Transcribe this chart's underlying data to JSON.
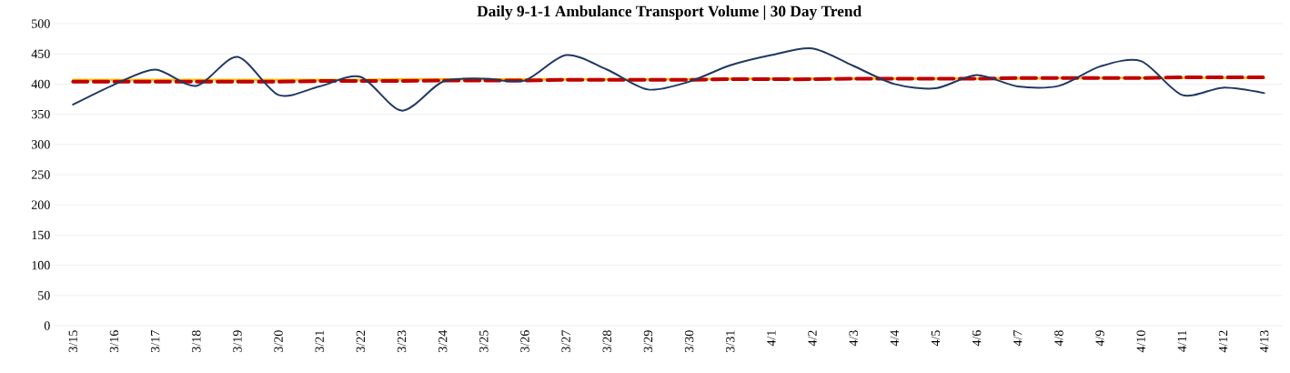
{
  "chart_data": {
    "type": "line",
    "title": "Daily 9-1-1 Ambulance Transport Volume | 30 Day Trend",
    "categories": [
      "3/15",
      "3/16",
      "3/17",
      "3/18",
      "3/19",
      "3/20",
      "3/21",
      "3/22",
      "3/23",
      "3/24",
      "3/25",
      "3/26",
      "3/27",
      "3/28",
      "3/29",
      "3/30",
      "3/31",
      "4/1",
      "4/2",
      "4/3",
      "4/4",
      "4/5",
      "4/6",
      "4/7",
      "4/8",
      "4/9",
      "4/10",
      "4/11",
      "4/12",
      "4/13"
    ],
    "series": [
      {
        "color": "#ffc000",
        "line_style": "dashed",
        "values": [
          407,
          407,
          407,
          407,
          407,
          407,
          407,
          407,
          408,
          408,
          408,
          408,
          408,
          408,
          408,
          408,
          409,
          409,
          409,
          409,
          409,
          409,
          409,
          409,
          410,
          410,
          410,
          410,
          410,
          410
        ]
      },
      {
        "color": "#c00000",
        "line_style": "dashed",
        "values": [
          404,
          404,
          404,
          404,
          404,
          404,
          405,
          405,
          405,
          406,
          406,
          406,
          407,
          407,
          407,
          407,
          408,
          408,
          408,
          409,
          409,
          409,
          409,
          410,
          410,
          410,
          410,
          411,
          411,
          411
        ]
      },
      {
        "color": "#203864",
        "line_style": "solid",
        "values": [
          366,
          399,
          424,
          397,
          445,
          382,
          396,
          412,
          356,
          404,
          409,
          406,
          448,
          424,
          391,
          404,
          431,
          448,
          459,
          430,
          400,
          393,
          415,
          396,
          397,
          429,
          438,
          382,
          394,
          385
        ]
      }
    ],
    "ylim": [
      0,
      500
    ],
    "yticks": [
      0,
      50,
      100,
      150,
      200,
      250,
      300,
      350,
      400,
      450,
      500
    ],
    "grid": "y",
    "marker": "none"
  }
}
